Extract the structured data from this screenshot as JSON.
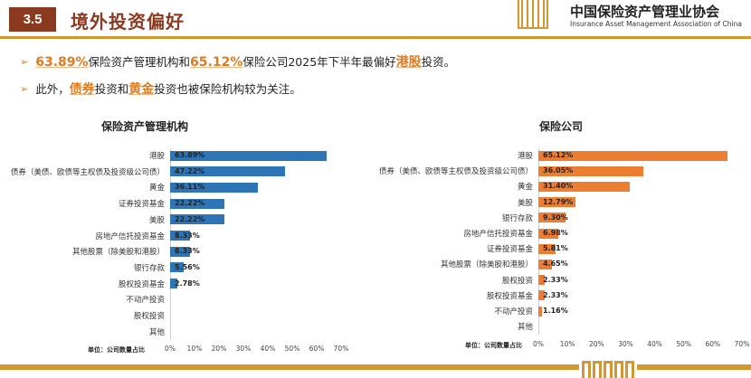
{
  "header": {
    "section": "3.5",
    "title": "境外投资偏好",
    "org_cn": "中国保险资产管理业协会",
    "org_en": "Insurance Asset Management Association of China",
    "logo": "IAMAC"
  },
  "bullets": [
    {
      "parts": [
        {
          "t": "63.89%",
          "hl": true
        },
        {
          "t": "保险资产管理机构和"
        },
        {
          "t": "65.12%",
          "hl": true
        },
        {
          "t": "保险公司2025年下半年最偏好"
        },
        {
          "t": "港股",
          "hl": true
        },
        {
          "t": "投资。"
        }
      ]
    },
    {
      "parts": [
        {
          "t": "此外，"
        },
        {
          "t": "债券",
          "hl": true
        },
        {
          "t": "投资和"
        },
        {
          "t": "黄金",
          "hl": true
        },
        {
          "t": "投资也被保险机构较为关注。"
        }
      ]
    }
  ],
  "colors": {
    "left": "#2e75b6",
    "right": "#ed7d31"
  },
  "chart_data": [
    {
      "type": "bar",
      "orientation": "horizontal",
      "title": "保险资产管理机构",
      "unit_label": "单位：公司数量占比",
      "xlim": [
        0,
        70
      ],
      "ticks": [
        "0%",
        "10%",
        "20%",
        "30%",
        "40%",
        "50%",
        "60%",
        "70%"
      ],
      "categories": [
        "港股",
        "债券（美债、欧债等主权债及投资级公司债）",
        "黄金",
        "证券投资基金",
        "美股",
        "房地产信托投资基金",
        "其他股票（除美股和港股）",
        "银行存款",
        "股权投资基金",
        "不动产投资",
        "股权投资",
        "其他"
      ],
      "values": [
        63.89,
        47.22,
        36.11,
        22.22,
        22.22,
        8.33,
        8.33,
        5.56,
        2.78,
        0,
        0,
        0
      ],
      "labels": [
        "63.89%",
        "47.22%",
        "36.11%",
        "22.22%",
        "22.22%",
        "8.33%",
        "8.33%",
        "5.56%",
        "2.78%",
        "",
        "",
        ""
      ]
    },
    {
      "type": "bar",
      "orientation": "horizontal",
      "title": "保险公司",
      "unit_label": "单位：公司数量占比",
      "xlim": [
        0,
        70
      ],
      "ticks": [
        "0%",
        "10%",
        "20%",
        "30%",
        "40%",
        "50%",
        "60%",
        "70%"
      ],
      "categories": [
        "港股",
        "债券（美债、欧债等主权债及投资级公司债）",
        "黄金",
        "美股",
        "银行存款",
        "房地产信托投资基金",
        "证券投资基金",
        "其他股票（除美股和港股）",
        "股权投资",
        "股权投资基金",
        "不动产投资",
        "其他"
      ],
      "values": [
        65.12,
        36.05,
        31.4,
        12.79,
        9.3,
        6.98,
        5.81,
        4.65,
        2.33,
        2.33,
        1.16,
        0
      ],
      "labels": [
        "65.12%",
        "36.05%",
        "31.40%",
        "12.79%",
        "9.30%",
        "6.98%",
        "5.81%",
        "4.65%",
        "2.33%",
        "2.33%",
        "1.16%",
        ""
      ]
    }
  ]
}
